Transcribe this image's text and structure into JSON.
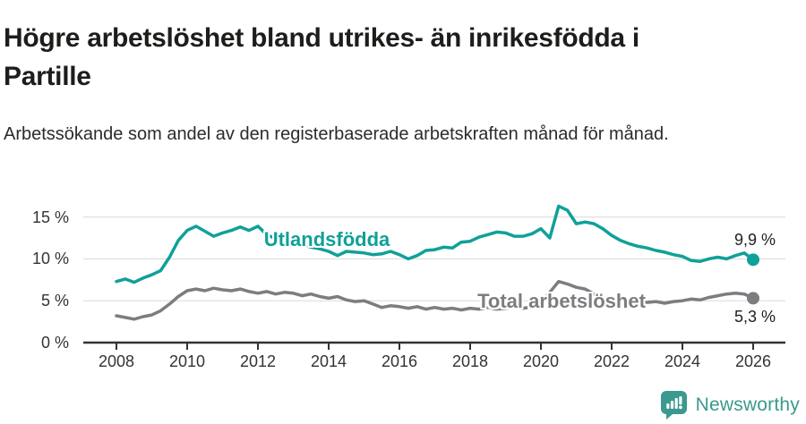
{
  "header": {
    "title": "Högre arbetslöshet bland utrikes- än inrikesfödda i Partille",
    "subtitle": "Arbetssökande som andel av den registerbaserade arbetskraften månad för månad."
  },
  "chart_data": {
    "type": "line",
    "x_start_year": 2008,
    "x_step_years": 0.25,
    "xlim": [
      2007.1,
      2026.9
    ],
    "ylim": [
      0,
      17
    ],
    "grid": "horizontal",
    "grid_color": "#d9d9d9",
    "axis_color": "#333333",
    "x_ticks": [
      {
        "v": 2008,
        "label": "2008"
      },
      {
        "v": 2010,
        "label": "2010"
      },
      {
        "v": 2012,
        "label": "2012"
      },
      {
        "v": 2014,
        "label": "2014"
      },
      {
        "v": 2016,
        "label": "2016"
      },
      {
        "v": 2018,
        "label": "2018"
      },
      {
        "v": 2020,
        "label": "2020"
      },
      {
        "v": 2022,
        "label": "2022"
      },
      {
        "v": 2024,
        "label": "2024"
      },
      {
        "v": 2026,
        "label": "2026"
      }
    ],
    "y_ticks": [
      {
        "v": 0,
        "label": "0 %"
      },
      {
        "v": 5,
        "label": "5 %"
      },
      {
        "v": 10,
        "label": "10 %"
      },
      {
        "v": 15,
        "label": "15 %"
      }
    ],
    "series": [
      {
        "name": "Utlandsfödda",
        "color": "#10a099",
        "end_value": 9.9,
        "end_label": "9,9 %",
        "values": [
          7.3,
          7.6,
          7.2,
          7.7,
          8.1,
          8.6,
          10.2,
          12.2,
          13.4,
          13.9,
          13.3,
          12.7,
          13.1,
          13.4,
          13.8,
          13.4,
          13.9,
          12.9,
          12.4,
          12.2,
          11.9,
          11.7,
          11.4,
          11.2,
          10.9,
          10.4,
          10.9,
          10.8,
          10.7,
          10.5,
          10.6,
          10.9,
          10.5,
          10.0,
          10.4,
          11.0,
          11.1,
          11.4,
          11.3,
          12.0,
          12.1,
          12.6,
          12.9,
          13.2,
          13.1,
          12.7,
          12.7,
          13.0,
          13.6,
          12.5,
          16.3,
          15.8,
          14.2,
          14.4,
          14.2,
          13.6,
          12.8,
          12.2,
          11.8,
          11.5,
          11.3,
          11.0,
          10.8,
          10.5,
          10.3,
          9.8,
          9.7,
          10.0,
          10.2,
          10.0,
          10.4,
          10.7,
          9.9
        ]
      },
      {
        "name": "Total arbetslöshet",
        "color": "#7d7d81",
        "end_value": 5.3,
        "end_label": "5,3 %",
        "values": [
          3.2,
          3.0,
          2.8,
          3.1,
          3.3,
          3.8,
          4.6,
          5.5,
          6.2,
          6.4,
          6.2,
          6.5,
          6.3,
          6.2,
          6.4,
          6.1,
          5.9,
          6.1,
          5.8,
          6.0,
          5.9,
          5.6,
          5.8,
          5.5,
          5.3,
          5.5,
          5.1,
          4.9,
          5.0,
          4.6,
          4.2,
          4.4,
          4.3,
          4.1,
          4.3,
          4.0,
          4.2,
          4.0,
          4.1,
          3.9,
          4.1,
          4.0,
          4.2,
          4.0,
          4.1,
          4.2,
          4.1,
          4.3,
          4.6,
          6.0,
          7.3,
          7.0,
          6.6,
          6.4,
          5.8,
          5.4,
          5.1,
          4.9,
          4.8,
          4.9,
          4.8,
          4.9,
          4.7,
          4.9,
          5.0,
          5.2,
          5.1,
          5.4,
          5.6,
          5.8,
          5.9,
          5.8,
          5.3
        ]
      }
    ]
  },
  "branding": {
    "logo_text": "Newsworthy",
    "logo_icon": "newsworthy-speech-bubble-bar-chart-icon",
    "logo_color": "#3b998f"
  }
}
